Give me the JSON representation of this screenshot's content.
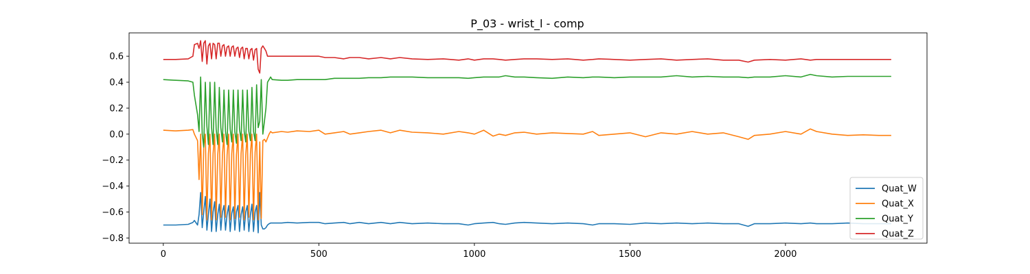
{
  "chart_data": {
    "type": "line",
    "title": "P_03 - wrist_l - comp",
    "xlabel": "",
    "ylabel": "",
    "xlim": [
      -110,
      2455
    ],
    "ylim": [
      -0.84,
      0.78
    ],
    "xticks": [
      0,
      500,
      1000,
      1500,
      2000
    ],
    "xtick_labels": [
      "0",
      "500",
      "1000",
      "1500",
      "2000"
    ],
    "yticks": [
      -0.8,
      -0.6,
      -0.4,
      -0.2,
      0.0,
      0.2,
      0.4,
      0.6
    ],
    "ytick_labels": [
      "−0.8",
      "−0.6",
      "−0.4",
      "−0.2",
      "0.0",
      "0.2",
      "0.4",
      "0.6"
    ],
    "grid": false,
    "legend_position": "bottom-right",
    "series": [
      {
        "name": "Quat_W",
        "color": "#1f77b4",
        "x": [
          0,
          40,
          80,
          95,
          100,
          110,
          115,
          120,
          125,
          130,
          135,
          140,
          145,
          150,
          155,
          160,
          165,
          170,
          175,
          180,
          185,
          190,
          195,
          200,
          205,
          210,
          215,
          220,
          225,
          230,
          235,
          240,
          245,
          250,
          255,
          260,
          265,
          270,
          275,
          280,
          285,
          290,
          295,
          300,
          305,
          310,
          315,
          320,
          325,
          330,
          335,
          340,
          345,
          350,
          380,
          400,
          430,
          470,
          500,
          520,
          550,
          580,
          600,
          630,
          660,
          700,
          730,
          760,
          800,
          850,
          900,
          950,
          980,
          1000,
          1030,
          1060,
          1080,
          1100,
          1130,
          1160,
          1200,
          1250,
          1300,
          1350,
          1380,
          1400,
          1450,
          1500,
          1550,
          1600,
          1650,
          1700,
          1750,
          1800,
          1850,
          1880,
          1900,
          1950,
          2000,
          2050,
          2080,
          2100,
          2150,
          2200,
          2250,
          2300,
          2340
        ],
        "y": [
          -0.7,
          -0.7,
          -0.695,
          -0.68,
          -0.665,
          -0.7,
          -0.62,
          -0.45,
          -0.72,
          -0.6,
          -0.48,
          -0.74,
          -0.62,
          -0.5,
          -0.75,
          -0.6,
          -0.52,
          -0.75,
          -0.62,
          -0.54,
          -0.74,
          -0.6,
          -0.55,
          -0.74,
          -0.62,
          -0.55,
          -0.75,
          -0.61,
          -0.56,
          -0.74,
          -0.6,
          -0.55,
          -0.75,
          -0.62,
          -0.56,
          -0.74,
          -0.6,
          -0.55,
          -0.75,
          -0.62,
          -0.54,
          -0.75,
          -0.6,
          -0.55,
          -0.76,
          -0.45,
          -0.7,
          -0.73,
          -0.73,
          -0.72,
          -0.7,
          -0.69,
          -0.685,
          -0.685,
          -0.685,
          -0.68,
          -0.685,
          -0.68,
          -0.68,
          -0.69,
          -0.685,
          -0.68,
          -0.69,
          -0.68,
          -0.69,
          -0.68,
          -0.69,
          -0.68,
          -0.69,
          -0.685,
          -0.69,
          -0.69,
          -0.7,
          -0.69,
          -0.685,
          -0.68,
          -0.69,
          -0.695,
          -0.685,
          -0.68,
          -0.685,
          -0.69,
          -0.685,
          -0.69,
          -0.7,
          -0.69,
          -0.69,
          -0.695,
          -0.685,
          -0.69,
          -0.685,
          -0.69,
          -0.685,
          -0.69,
          -0.69,
          -0.71,
          -0.69,
          -0.69,
          -0.685,
          -0.69,
          -0.685,
          -0.69,
          -0.69,
          -0.685,
          -0.69,
          -0.69,
          -0.69
        ]
      },
      {
        "name": "Quat_X",
        "color": "#ff7f0e",
        "x": [
          0,
          40,
          80,
          95,
          100,
          110,
          115,
          120,
          125,
          130,
          135,
          140,
          145,
          150,
          155,
          160,
          165,
          170,
          175,
          180,
          185,
          190,
          195,
          200,
          205,
          210,
          215,
          220,
          225,
          230,
          235,
          240,
          245,
          250,
          255,
          260,
          265,
          270,
          275,
          280,
          285,
          290,
          295,
          300,
          305,
          310,
          315,
          320,
          325,
          330,
          335,
          340,
          345,
          350,
          380,
          400,
          430,
          470,
          500,
          520,
          550,
          580,
          600,
          630,
          660,
          700,
          730,
          760,
          800,
          850,
          900,
          950,
          980,
          1000,
          1030,
          1060,
          1080,
          1100,
          1130,
          1160,
          1200,
          1250,
          1300,
          1350,
          1380,
          1400,
          1450,
          1500,
          1550,
          1600,
          1650,
          1700,
          1750,
          1800,
          1850,
          1880,
          1900,
          1950,
          2000,
          2050,
          2080,
          2100,
          2150,
          2200,
          2250,
          2300,
          2340
        ],
        "y": [
          0.03,
          0.025,
          0.03,
          0.035,
          0.0,
          -0.05,
          -0.35,
          0.0,
          -0.62,
          -0.1,
          0.0,
          -0.66,
          -0.15,
          0.0,
          -0.66,
          -0.15,
          0.0,
          -0.66,
          -0.16,
          0.0,
          -0.64,
          -0.16,
          0.0,
          -0.64,
          -0.16,
          0.0,
          -0.66,
          -0.15,
          0.0,
          -0.65,
          -0.16,
          0.0,
          -0.64,
          -0.15,
          0.0,
          -0.66,
          -0.16,
          0.0,
          -0.64,
          -0.15,
          0.0,
          -0.66,
          -0.14,
          0.0,
          -0.66,
          -0.06,
          -0.65,
          -0.05,
          -0.04,
          -0.06,
          -0.03,
          0.0,
          0.02,
          0.01,
          0.02,
          0.015,
          0.025,
          0.02,
          0.03,
          0.0,
          0.01,
          0.02,
          0.0,
          0.01,
          0.02,
          0.03,
          0.01,
          0.03,
          0.015,
          0.01,
          0.0,
          0.02,
          0.01,
          0.0,
          0.03,
          -0.015,
          0.0,
          -0.01,
          0.01,
          0.015,
          0.0,
          0.01,
          0.005,
          0.0,
          0.02,
          -0.01,
          0.0,
          0.01,
          -0.02,
          0.01,
          0.0,
          0.02,
          0.0,
          0.01,
          -0.02,
          -0.04,
          -0.01,
          0.0,
          0.02,
          0.0,
          0.04,
          0.02,
          0.0,
          -0.01,
          -0.005,
          -0.01,
          -0.01
        ]
      },
      {
        "name": "Quat_Y",
        "color": "#2ca02c",
        "x": [
          0,
          40,
          80,
          95,
          100,
          110,
          115,
          120,
          125,
          130,
          135,
          140,
          145,
          150,
          155,
          160,
          165,
          170,
          175,
          180,
          185,
          190,
          195,
          200,
          205,
          210,
          215,
          220,
          225,
          230,
          235,
          240,
          245,
          250,
          255,
          260,
          265,
          270,
          275,
          280,
          285,
          290,
          295,
          300,
          305,
          310,
          315,
          320,
          325,
          330,
          335,
          340,
          345,
          350,
          380,
          400,
          430,
          470,
          500,
          520,
          550,
          580,
          600,
          630,
          660,
          700,
          730,
          760,
          800,
          850,
          900,
          950,
          980,
          1000,
          1030,
          1060,
          1080,
          1100,
          1130,
          1160,
          1200,
          1250,
          1300,
          1350,
          1380,
          1400,
          1450,
          1500,
          1550,
          1600,
          1650,
          1700,
          1750,
          1800,
          1850,
          1880,
          1900,
          1950,
          2000,
          2050,
          2080,
          2100,
          2150,
          2200,
          2250,
          2300,
          2340
        ],
        "y": [
          0.42,
          0.415,
          0.41,
          0.4,
          0.3,
          0.15,
          0.02,
          0.44,
          0.0,
          -0.1,
          0.4,
          0.06,
          -0.08,
          0.4,
          0.05,
          -0.08,
          0.4,
          0.04,
          -0.08,
          0.36,
          0.05,
          -0.06,
          0.34,
          0.02,
          -0.08,
          0.34,
          0.04,
          -0.06,
          0.34,
          0.02,
          -0.07,
          0.34,
          0.04,
          -0.05,
          0.34,
          0.02,
          -0.06,
          0.34,
          0.02,
          -0.05,
          0.36,
          0.02,
          -0.05,
          0.38,
          0.05,
          0.1,
          0.42,
          0.0,
          0.1,
          0.2,
          0.4,
          0.42,
          0.44,
          0.42,
          0.415,
          0.415,
          0.42,
          0.42,
          0.42,
          0.42,
          0.43,
          0.43,
          0.43,
          0.43,
          0.435,
          0.435,
          0.44,
          0.44,
          0.44,
          0.435,
          0.435,
          0.435,
          0.43,
          0.435,
          0.44,
          0.44,
          0.44,
          0.45,
          0.44,
          0.44,
          0.435,
          0.43,
          0.44,
          0.435,
          0.44,
          0.44,
          0.435,
          0.44,
          0.44,
          0.44,
          0.45,
          0.44,
          0.445,
          0.44,
          0.44,
          0.435,
          0.44,
          0.44,
          0.45,
          0.44,
          0.46,
          0.45,
          0.44,
          0.445,
          0.445,
          0.445,
          0.445
        ]
      },
      {
        "name": "Quat_Z",
        "color": "#d62728",
        "x": [
          0,
          40,
          80,
          95,
          100,
          110,
          115,
          120,
          125,
          130,
          135,
          140,
          145,
          150,
          155,
          160,
          165,
          170,
          175,
          180,
          185,
          190,
          195,
          200,
          205,
          210,
          215,
          220,
          225,
          230,
          235,
          240,
          245,
          250,
          255,
          260,
          265,
          270,
          275,
          280,
          285,
          290,
          295,
          300,
          305,
          310,
          315,
          320,
          325,
          330,
          335,
          340,
          345,
          350,
          380,
          400,
          430,
          470,
          500,
          520,
          550,
          580,
          600,
          630,
          660,
          700,
          730,
          760,
          800,
          850,
          900,
          950,
          980,
          1000,
          1030,
          1060,
          1080,
          1100,
          1130,
          1160,
          1200,
          1250,
          1300,
          1350,
          1380,
          1400,
          1450,
          1500,
          1550,
          1600,
          1650,
          1700,
          1750,
          1800,
          1850,
          1880,
          1900,
          1950,
          2000,
          2050,
          2080,
          2100,
          2150,
          2200,
          2250,
          2300,
          2340
        ],
        "y": [
          0.575,
          0.575,
          0.58,
          0.6,
          0.69,
          0.7,
          0.66,
          0.72,
          0.56,
          0.7,
          0.72,
          0.54,
          0.68,
          0.7,
          0.58,
          0.7,
          0.69,
          0.58,
          0.7,
          0.7,
          0.6,
          0.68,
          0.69,
          0.6,
          0.67,
          0.68,
          0.6,
          0.67,
          0.68,
          0.6,
          0.66,
          0.67,
          0.59,
          0.66,
          0.67,
          0.58,
          0.66,
          0.66,
          0.58,
          0.65,
          0.66,
          0.57,
          0.65,
          0.66,
          0.5,
          0.47,
          0.66,
          0.68,
          0.66,
          0.64,
          0.6,
          0.6,
          0.6,
          0.6,
          0.6,
          0.6,
          0.6,
          0.6,
          0.6,
          0.59,
          0.59,
          0.58,
          0.59,
          0.59,
          0.58,
          0.59,
          0.58,
          0.59,
          0.58,
          0.575,
          0.58,
          0.57,
          0.58,
          0.57,
          0.58,
          0.58,
          0.575,
          0.57,
          0.575,
          0.58,
          0.58,
          0.575,
          0.58,
          0.57,
          0.575,
          0.58,
          0.575,
          0.57,
          0.575,
          0.58,
          0.57,
          0.575,
          0.58,
          0.57,
          0.57,
          0.555,
          0.57,
          0.575,
          0.57,
          0.58,
          0.57,
          0.575,
          0.575,
          0.575,
          0.575,
          0.575,
          0.575
        ]
      }
    ]
  }
}
